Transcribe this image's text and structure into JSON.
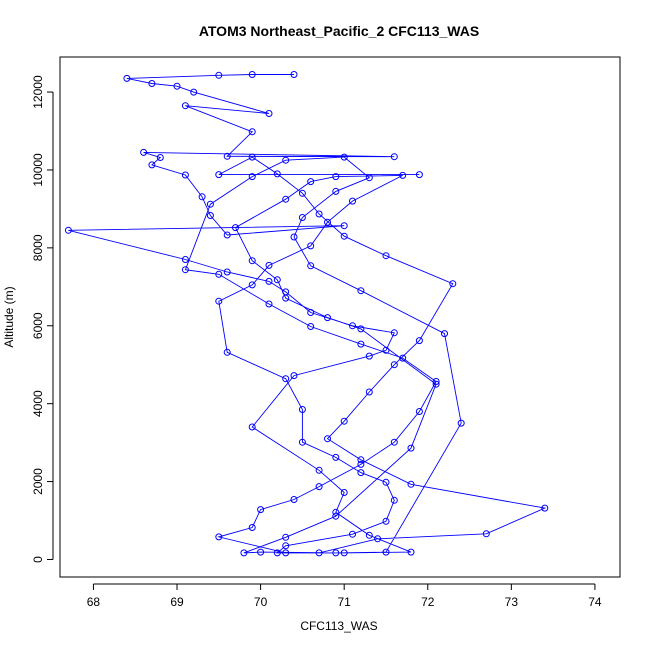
{
  "chart_data": {
    "type": "scatter",
    "title": "ATOM3 Northeast_Pacific_2 CFC113_WAS",
    "xlabel": "CFC113_WAS",
    "ylabel": "Altitude (m)",
    "xlim": [
      67.6,
      74.3
    ],
    "ylim": [
      -450,
      12900
    ],
    "xticks": [
      68,
      69,
      70,
      71,
      72,
      73,
      74
    ],
    "yticks": [
      0,
      2000,
      4000,
      6000,
      8000,
      10000,
      12000
    ],
    "grid": false,
    "legend": "none",
    "series": [
      {
        "color": "#0000ff",
        "style": "line+points",
        "points": [
          [
            70.4,
            12450
          ],
          [
            69.9,
            12450
          ],
          [
            69.5,
            12430
          ],
          [
            68.4,
            12350
          ],
          [
            68.7,
            12220
          ],
          [
            69.0,
            12150
          ],
          [
            69.2,
            12000
          ],
          [
            70.1,
            11450
          ],
          [
            69.1,
            11650
          ],
          [
            69.9,
            10980
          ],
          [
            69.6,
            10350
          ],
          [
            71.6,
            10340
          ],
          [
            68.6,
            10450
          ],
          [
            68.8,
            10320
          ],
          [
            68.7,
            10130
          ],
          [
            69.1,
            9870
          ],
          [
            69.3,
            9310
          ],
          [
            69.4,
            8830
          ],
          [
            69.6,
            8330
          ],
          [
            71.0,
            8570
          ],
          [
            67.7,
            8450
          ],
          [
            69.1,
            7700
          ],
          [
            69.6,
            7380
          ],
          [
            70.1,
            7140
          ],
          [
            70.3,
            6870
          ],
          [
            70.6,
            6340
          ],
          [
            71.1,
            6000
          ],
          [
            71.6,
            5820
          ],
          [
            71.5,
            5370
          ],
          [
            71.3,
            5220
          ],
          [
            70.4,
            4720
          ],
          [
            69.9,
            3400
          ],
          [
            70.7,
            2290
          ],
          [
            71.0,
            1720
          ],
          [
            70.9,
            1210
          ],
          [
            71.3,
            620
          ],
          [
            71.8,
            190
          ],
          [
            71.0,
            170
          ],
          [
            70.0,
            190
          ],
          [
            69.8,
            170
          ],
          [
            70.3,
            570
          ],
          [
            70.9,
            1110
          ],
          [
            71.8,
            2860
          ],
          [
            72.1,
            4500
          ],
          [
            71.2,
            5920
          ],
          [
            70.8,
            6210
          ],
          [
            70.3,
            6710
          ],
          [
            70.2,
            7180
          ],
          [
            69.9,
            7670
          ],
          [
            69.7,
            8520
          ],
          [
            70.3,
            9250
          ],
          [
            70.6,
            9700
          ],
          [
            70.9,
            9830
          ],
          [
            71.7,
            9860
          ],
          [
            71.1,
            9200
          ],
          [
            70.8,
            8660
          ],
          [
            70.6,
            8050
          ],
          [
            70.1,
            7550
          ],
          [
            69.9,
            7050
          ],
          [
            69.5,
            6630
          ],
          [
            69.6,
            5320
          ],
          [
            70.3,
            4640
          ],
          [
            70.5,
            3850
          ],
          [
            70.5,
            3010
          ],
          [
            70.9,
            2620
          ],
          [
            71.2,
            2230
          ],
          [
            71.5,
            1980
          ],
          [
            71.6,
            1520
          ],
          [
            71.5,
            980
          ],
          [
            71.1,
            650
          ],
          [
            70.3,
            350
          ],
          [
            70.2,
            170
          ],
          [
            70.9,
            170
          ],
          [
            71.5,
            190
          ],
          [
            72.4,
            3500
          ],
          [
            72.2,
            5800
          ],
          [
            71.2,
            6900
          ],
          [
            70.6,
            7540
          ],
          [
            70.4,
            8280
          ],
          [
            70.5,
            8780
          ],
          [
            70.9,
            9450
          ],
          [
            71.3,
            9800
          ],
          [
            71.0,
            10330
          ],
          [
            70.3,
            10250
          ],
          [
            69.9,
            9830
          ],
          [
            69.4,
            9120
          ],
          [
            69.1,
            7440
          ],
          [
            69.5,
            7320
          ],
          [
            70.1,
            6560
          ],
          [
            70.6,
            5980
          ],
          [
            71.2,
            5530
          ],
          [
            71.7,
            5170
          ],
          [
            72.1,
            4570
          ],
          [
            71.9,
            3800
          ],
          [
            71.6,
            3010
          ],
          [
            71.2,
            2440
          ],
          [
            70.7,
            1870
          ],
          [
            70.4,
            1540
          ],
          [
            70.0,
            1280
          ],
          [
            69.9,
            820
          ],
          [
            69.5,
            580
          ],
          [
            70.3,
            170
          ],
          [
            70.7,
            170
          ],
          [
            71.4,
            530
          ],
          [
            72.7,
            660
          ],
          [
            73.4,
            1320
          ],
          [
            71.8,
            1930
          ],
          [
            71.2,
            2560
          ],
          [
            70.8,
            3100
          ],
          [
            71.0,
            3550
          ],
          [
            71.3,
            4300
          ],
          [
            71.6,
            5000
          ],
          [
            71.9,
            5620
          ],
          [
            72.3,
            7080
          ],
          [
            71.5,
            7800
          ],
          [
            71.0,
            8300
          ],
          [
            70.7,
            8870
          ],
          [
            70.5,
            9400
          ],
          [
            70.2,
            9900
          ],
          [
            69.9,
            10330
          ],
          [
            69.5,
            9880
          ],
          [
            71.9,
            9880
          ]
        ]
      }
    ]
  }
}
